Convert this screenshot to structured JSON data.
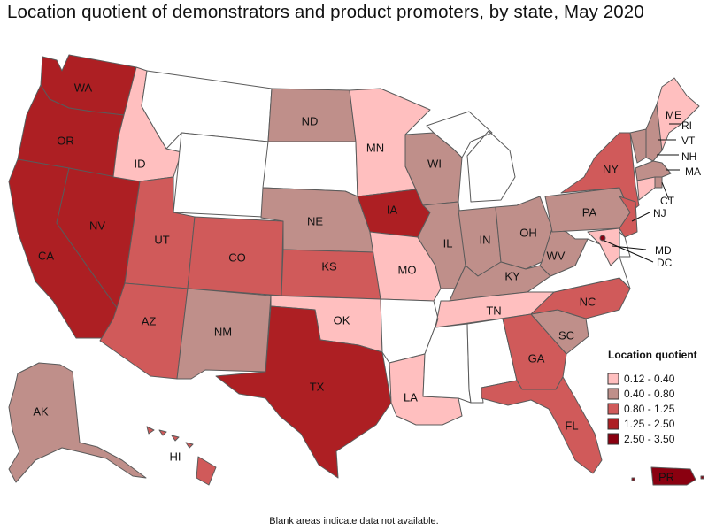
{
  "title": "Location quotient of demonstrators and product promoters, by state, May 2020",
  "footnote": "Blank areas indicate data not available.",
  "colors": {
    "c1": "#ffbfbf",
    "c2": "#bf8f8a",
    "c3": "#d05a5a",
    "c4": "#ad1f23",
    "c5": "#8a0010",
    "nodata": "#ffffff"
  },
  "legend": {
    "title": "Location quotient",
    "items": [
      {
        "label": "0.12 - 0.40",
        "cls": "c1"
      },
      {
        "label": "0.40 - 0.80",
        "cls": "c2"
      },
      {
        "label": "0.80 - 1.25",
        "cls": "c3"
      },
      {
        "label": "1.25 - 2.50",
        "cls": "c4"
      },
      {
        "label": "2.50 - 3.50",
        "cls": "c5"
      }
    ]
  },
  "states": {
    "WA": {
      "label": "WA",
      "cls": "c4"
    },
    "OR": {
      "label": "OR",
      "cls": "c4"
    },
    "CA": {
      "label": "CA",
      "cls": "c4"
    },
    "NV": {
      "label": "NV",
      "cls": "c4"
    },
    "ID": {
      "label": "ID",
      "cls": "c1"
    },
    "MT": {
      "label": "",
      "cls": "nodata"
    },
    "WY": {
      "label": "",
      "cls": "nodata"
    },
    "UT": {
      "label": "UT",
      "cls": "c3"
    },
    "AZ": {
      "label": "AZ",
      "cls": "c3"
    },
    "CO": {
      "label": "CO",
      "cls": "c3"
    },
    "NM": {
      "label": "NM",
      "cls": "c2"
    },
    "ND": {
      "label": "ND",
      "cls": "c2"
    },
    "SD": {
      "label": "",
      "cls": "nodata"
    },
    "NE": {
      "label": "NE",
      "cls": "c2"
    },
    "KS": {
      "label": "KS",
      "cls": "c3"
    },
    "OK": {
      "label": "OK",
      "cls": "c1"
    },
    "TX": {
      "label": "TX",
      "cls": "c4"
    },
    "MN": {
      "label": "MN",
      "cls": "c1"
    },
    "IA": {
      "label": "IA",
      "cls": "c4"
    },
    "MO": {
      "label": "MO",
      "cls": "c1"
    },
    "AR": {
      "label": "",
      "cls": "nodata"
    },
    "LA": {
      "label": "LA",
      "cls": "c1"
    },
    "WI": {
      "label": "WI",
      "cls": "c2"
    },
    "IL": {
      "label": "IL",
      "cls": "c2"
    },
    "MI": {
      "label": "",
      "cls": "nodata"
    },
    "IN": {
      "label": "IN",
      "cls": "c2"
    },
    "OH": {
      "label": "OH",
      "cls": "c2"
    },
    "KY": {
      "label": "KY",
      "cls": "c2"
    },
    "TN": {
      "label": "TN",
      "cls": "c1"
    },
    "MS": {
      "label": "",
      "cls": "nodata"
    },
    "AL": {
      "label": "",
      "cls": "nodata"
    },
    "GA": {
      "label": "GA",
      "cls": "c3"
    },
    "FL": {
      "label": "FL",
      "cls": "c3"
    },
    "SC": {
      "label": "SC",
      "cls": "c2"
    },
    "NC": {
      "label": "NC",
      "cls": "c3"
    },
    "VA": {
      "label": "",
      "cls": "nodata"
    },
    "WV": {
      "label": "WV",
      "cls": "c2"
    },
    "PA": {
      "label": "PA",
      "cls": "c2"
    },
    "NY": {
      "label": "NY",
      "cls": "c3"
    },
    "NJ": {
      "label": "NJ",
      "cls": "c3"
    },
    "DE": {
      "label": "",
      "cls": "nodata"
    },
    "MD": {
      "label": "MD",
      "cls": "c1"
    },
    "DC": {
      "label": "DC",
      "cls": "c5"
    },
    "CT": {
      "label": "CT",
      "cls": "c1"
    },
    "RI": {
      "label": "RI",
      "cls": "c2"
    },
    "MA": {
      "label": "MA",
      "cls": "c2"
    },
    "VT": {
      "label": "VT",
      "cls": "c2"
    },
    "NH": {
      "label": "NH",
      "cls": "c2"
    },
    "ME": {
      "label": "ME",
      "cls": "c1"
    },
    "AK": {
      "label": "AK",
      "cls": "c2"
    },
    "HI": {
      "label": "HI",
      "cls": "c3"
    },
    "PR": {
      "label": "PR",
      "cls": "c5"
    }
  }
}
